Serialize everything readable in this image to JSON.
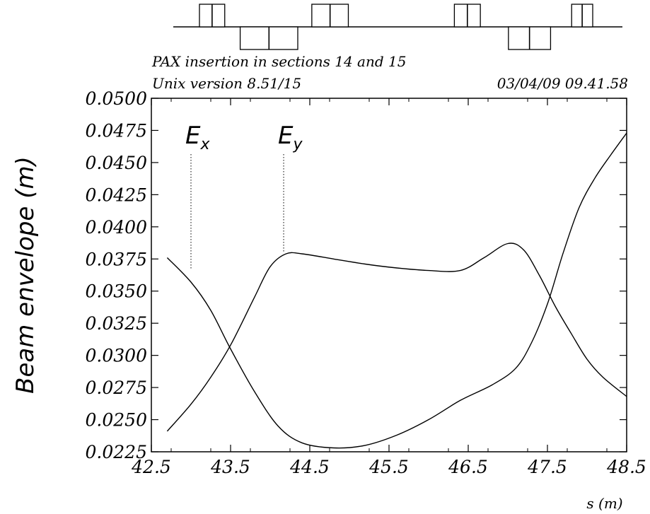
{
  "header": {
    "line1": "PAX insertion in sections 14 and 15",
    "line2_left": "Unix version 8.51/15",
    "line2_right": "03/04/09  09.41.58"
  },
  "lattice": {
    "elements": [
      {
        "kind": "quad-up",
        "s_start": 43.0,
        "s_end": 43.36
      },
      {
        "kind": "quad-down",
        "s_start": 43.58,
        "s_end": 44.4
      },
      {
        "kind": "quad-up",
        "s_start": 44.6,
        "s_end": 45.12
      },
      {
        "kind": "quad-up",
        "s_start": 46.63,
        "s_end": 47.0
      },
      {
        "kind": "quad-down",
        "s_start": 47.4,
        "s_end": 48.0
      },
      {
        "kind": "quad-up",
        "s_start": 48.3,
        "s_end": 48.6
      }
    ]
  },
  "chart_data": {
    "type": "line",
    "title": "",
    "xlabel": "s (m)",
    "ylabel": "Beam envelope (m)",
    "xlim": [
      42.5,
      48.5
    ],
    "ylim": [
      0.0225,
      0.05
    ],
    "x_ticks": [
      "42.5",
      "43.5",
      "44.5",
      "45.5",
      "46.5",
      "47.5",
      "48.5"
    ],
    "y_ticks": [
      "0.0225",
      "0.0250",
      "0.0275",
      "0.0300",
      "0.0325",
      "0.0350",
      "0.0375",
      "0.0400",
      "0.0425",
      "0.0450",
      "0.0475",
      "0.0500"
    ],
    "grid": false,
    "annotations": [
      {
        "label": "E",
        "sub": "x",
        "x": 43.0,
        "y": 0.0367
      },
      {
        "label": "E",
        "sub": "y",
        "x": 44.17,
        "y": 0.038
      }
    ],
    "series": [
      {
        "name": "E_x",
        "x": [
          42.7,
          43.0,
          43.25,
          43.5,
          43.8,
          44.1,
          44.4,
          44.8,
          45.2,
          45.6,
          46.0,
          46.4,
          46.8,
          47.1,
          47.3,
          47.5,
          47.7,
          47.9,
          48.1,
          48.3,
          48.5
        ],
        "y": [
          0.0376,
          0.0357,
          0.0335,
          0.0305,
          0.0272,
          0.0245,
          0.0232,
          0.0228,
          0.023,
          0.0238,
          0.025,
          0.0265,
          0.0277,
          0.029,
          0.031,
          0.034,
          0.038,
          0.0415,
          0.0438,
          0.0456,
          0.0473
        ]
      },
      {
        "name": "E_y",
        "x": [
          42.7,
          43.0,
          43.25,
          43.5,
          43.8,
          44.0,
          44.2,
          44.4,
          44.8,
          45.2,
          45.6,
          46.0,
          46.4,
          46.7,
          47.0,
          47.2,
          47.4,
          47.6,
          47.8,
          48.0,
          48.2,
          48.5
        ],
        "y": [
          0.0241,
          0.0262,
          0.0283,
          0.0308,
          0.0345,
          0.0369,
          0.0379,
          0.0379,
          0.0375,
          0.0371,
          0.0368,
          0.0366,
          0.0366,
          0.0376,
          0.0387,
          0.0382,
          0.0362,
          0.0338,
          0.0317,
          0.0297,
          0.0283,
          0.0268
        ]
      }
    ]
  }
}
